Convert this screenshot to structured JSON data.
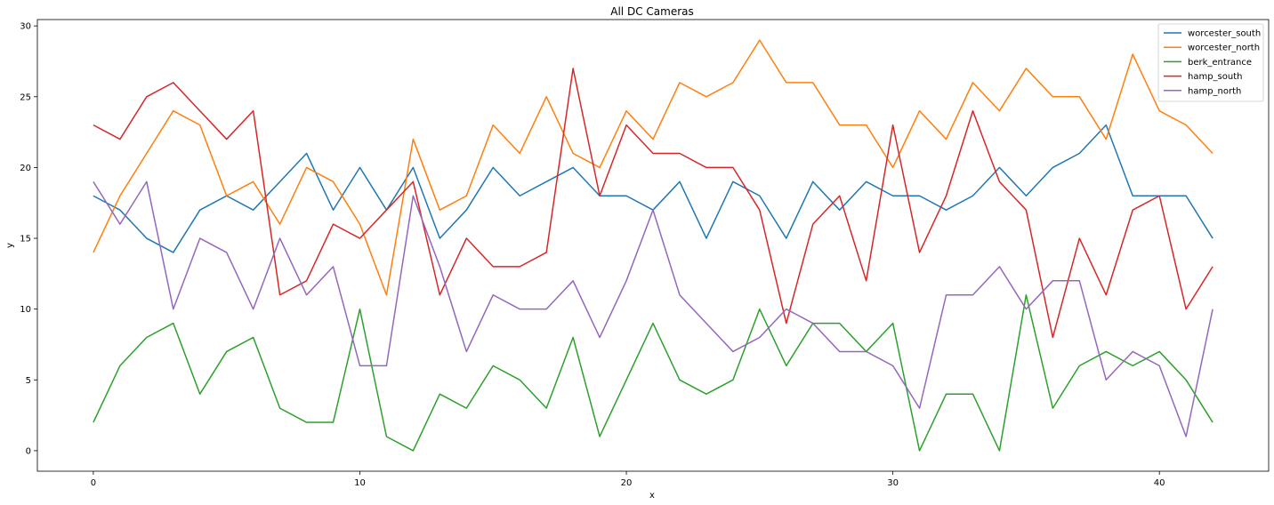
{
  "chart_data": {
    "type": "line",
    "title": "All DC Cameras",
    "xlabel": "x",
    "ylabel": "y",
    "xlim": [
      -2.1,
      44.1
    ],
    "ylim": [
      -1.45,
      30.45
    ],
    "xticks": [
      0,
      10,
      20,
      30,
      40
    ],
    "yticks": [
      0,
      5,
      10,
      15,
      20,
      25,
      30
    ],
    "grid": false,
    "legend_position": "top-right",
    "x": [
      0,
      1,
      2,
      3,
      4,
      5,
      6,
      7,
      8,
      9,
      10,
      11,
      12,
      13,
      14,
      15,
      16,
      17,
      18,
      19,
      20,
      21,
      22,
      23,
      24,
      25,
      26,
      27,
      28,
      29,
      30,
      31,
      32,
      33,
      34,
      35,
      36,
      37,
      38,
      39,
      40,
      41,
      42
    ],
    "series": [
      {
        "name": "worcester_south",
        "color": "#1f77b4",
        "values": [
          18,
          17,
          15,
          14,
          17,
          18,
          17,
          19,
          21,
          17,
          20,
          17,
          20,
          15,
          17,
          20,
          18,
          19,
          20,
          18,
          18,
          17,
          19,
          15,
          19,
          18,
          15,
          19,
          17,
          19,
          18,
          18,
          17,
          18,
          20,
          18,
          20,
          21,
          23,
          18,
          18,
          18,
          15
        ]
      },
      {
        "name": "worcester_north",
        "color": "#ff7f0e",
        "values": [
          14,
          18,
          21,
          24,
          23,
          18,
          19,
          16,
          20,
          19,
          16,
          11,
          22,
          17,
          18,
          23,
          21,
          25,
          21,
          20,
          24,
          22,
          26,
          25,
          26,
          29,
          26,
          26,
          23,
          23,
          20,
          24,
          22,
          26,
          24,
          27,
          25,
          25,
          22,
          28,
          24,
          23,
          21
        ]
      },
      {
        "name": "berk_entrance",
        "color": "#2ca02c",
        "values": [
          2,
          6,
          8,
          9,
          4,
          7,
          8,
          3,
          2,
          2,
          10,
          1,
          0,
          4,
          3,
          6,
          5,
          3,
          8,
          1,
          5,
          9,
          5,
          4,
          5,
          10,
          6,
          9,
          9,
          7,
          9,
          0,
          4,
          4,
          0,
          11,
          3,
          6,
          7,
          6,
          7,
          5,
          2
        ]
      },
      {
        "name": "hamp_south",
        "color": "#d62728",
        "values": [
          23,
          22,
          25,
          26,
          24,
          22,
          24,
          11,
          12,
          16,
          15,
          17,
          19,
          11,
          15,
          13,
          13,
          14,
          27,
          18,
          23,
          21,
          21,
          20,
          20,
          17,
          9,
          16,
          18,
          12,
          23,
          14,
          18,
          24,
          19,
          17,
          8,
          15,
          11,
          17,
          18,
          10,
          13
        ]
      },
      {
        "name": "hamp_north",
        "color": "#9467bd",
        "values": [
          19,
          16,
          19,
          10,
          15,
          14,
          10,
          15,
          11,
          13,
          6,
          6,
          18,
          13,
          7,
          11,
          10,
          10,
          12,
          8,
          12,
          17,
          11,
          9,
          7,
          8,
          10,
          9,
          7,
          7,
          6,
          3,
          11,
          11,
          13,
          10,
          12,
          12,
          5,
          7,
          6,
          1,
          10
        ]
      }
    ]
  }
}
